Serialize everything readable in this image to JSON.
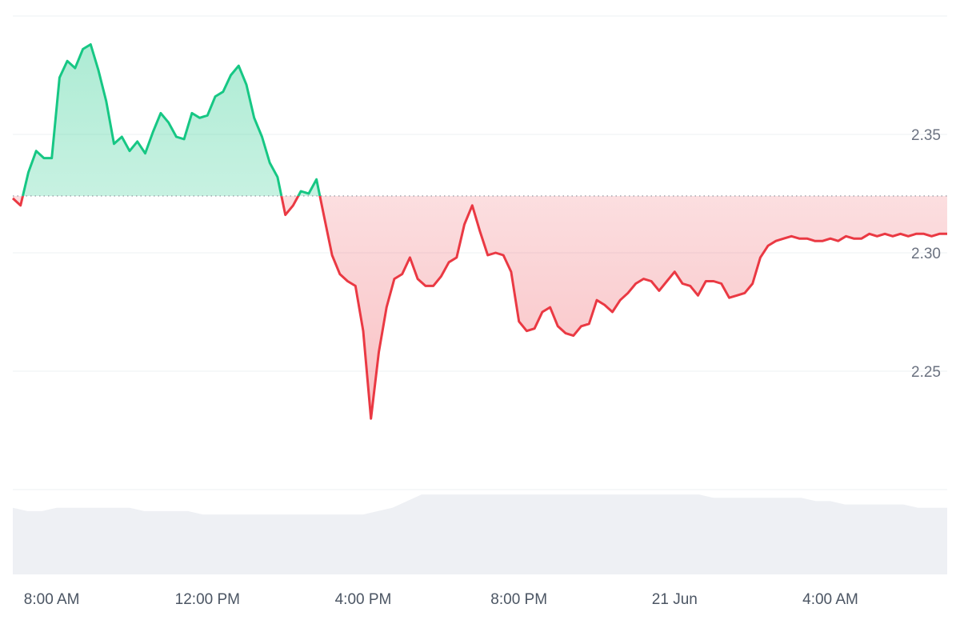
{
  "chart_data": {
    "type": "area",
    "baseline": 2.324,
    "ylim": [
      2.2,
      2.4
    ],
    "y_ticks": [
      "2.35",
      "2.30",
      "2.25"
    ],
    "x_ticks": [
      "8:00 AM",
      "12:00 PM",
      "4:00 PM",
      "8:00 PM",
      "21 Jun",
      "4:00 AM"
    ],
    "x_tick_hours": [
      8,
      12,
      16,
      20,
      24,
      28
    ],
    "x_range_hours": [
      7.0,
      31.0
    ],
    "colors": {
      "up": "#16c784",
      "down": "#ea3943",
      "volume": "#eef0f4",
      "grid": "#eef0f3",
      "baseline": "#8a8f99"
    },
    "series": [
      {
        "x": [
          7.0,
          7.2,
          7.4,
          7.6,
          7.8,
          8.0,
          8.2,
          8.4,
          8.6,
          8.8,
          9.0,
          9.2,
          9.4,
          9.6,
          9.8,
          10.0,
          10.2,
          10.4,
          10.6,
          10.8,
          11.0,
          11.2,
          11.4,
          11.6,
          11.8,
          12.0,
          12.2,
          12.4,
          12.6,
          12.8,
          13.0,
          13.2,
          13.4,
          13.6,
          13.8,
          14.0,
          14.2,
          14.4,
          14.6,
          14.8,
          15.0,
          15.2,
          15.4,
          15.6,
          15.8,
          16.0,
          16.2,
          16.4,
          16.6,
          16.8,
          17.0,
          17.2,
          17.4,
          17.6,
          17.8,
          18.0,
          18.2,
          18.4,
          18.6,
          18.8,
          19.0,
          19.2,
          19.4,
          19.6,
          19.8,
          20.0,
          20.2,
          20.4,
          20.6,
          20.8,
          21.0,
          21.2,
          21.4,
          21.6,
          21.8,
          22.0,
          22.2,
          22.4,
          22.6,
          22.8,
          23.0,
          23.2,
          23.4,
          23.6,
          23.8,
          24.0,
          24.2,
          24.4,
          24.6,
          24.8,
          25.0,
          25.2,
          25.4,
          25.6,
          25.8,
          26.0,
          26.2,
          26.4,
          26.6,
          26.8,
          27.0,
          27.2,
          27.4,
          27.6,
          27.8,
          28.0,
          28.2,
          28.4,
          28.6,
          28.8,
          29.0,
          29.2,
          29.4,
          29.6,
          29.8,
          30.0,
          30.2,
          30.4,
          30.6,
          30.8,
          31.0
        ],
        "values": [
          2.323,
          2.32,
          2.334,
          2.343,
          2.34,
          2.34,
          2.374,
          2.381,
          2.378,
          2.386,
          2.388,
          2.377,
          2.364,
          2.346,
          2.349,
          2.343,
          2.347,
          2.342,
          2.351,
          2.359,
          2.355,
          2.349,
          2.348,
          2.359,
          2.357,
          2.358,
          2.366,
          2.368,
          2.375,
          2.379,
          2.371,
          2.357,
          2.349,
          2.338,
          2.332,
          2.316,
          2.32,
          2.326,
          2.325,
          2.331,
          2.315,
          2.299,
          2.291,
          2.288,
          2.286,
          2.267,
          2.23,
          2.258,
          2.277,
          2.289,
          2.291,
          2.298,
          2.289,
          2.286,
          2.286,
          2.29,
          2.296,
          2.298,
          2.312,
          2.32,
          2.309,
          2.299,
          2.3,
          2.299,
          2.292,
          2.271,
          2.267,
          2.268,
          2.275,
          2.277,
          2.269,
          2.266,
          2.265,
          2.269,
          2.27,
          2.28,
          2.278,
          2.275,
          2.28,
          2.283,
          2.287,
          2.289,
          2.288,
          2.284,
          2.288,
          2.292,
          2.287,
          2.286,
          2.282,
          2.288,
          2.288,
          2.287,
          2.281,
          2.282,
          2.283,
          2.287,
          2.298,
          2.303,
          2.305,
          2.306,
          2.307,
          2.306,
          2.306,
          2.305,
          2.305,
          2.306,
          2.305,
          2.307,
          2.306,
          2.306,
          2.308,
          2.307,
          2.308,
          2.307,
          2.308,
          2.307,
          2.308,
          2.308,
          2.307,
          2.308,
          2.308
        ]
      }
    ],
    "volume": [
      0.2,
      0.19,
      0.19,
      0.2,
      0.2,
      0.2,
      0.2,
      0.2,
      0.2,
      0.19,
      0.19,
      0.19,
      0.19,
      0.18,
      0.18,
      0.18,
      0.18,
      0.18,
      0.18,
      0.18,
      0.18,
      0.18,
      0.18,
      0.18,
      0.18,
      0.19,
      0.2,
      0.22,
      0.24,
      0.24,
      0.24,
      0.24,
      0.24,
      0.24,
      0.24,
      0.24,
      0.24,
      0.24,
      0.24,
      0.24,
      0.24,
      0.24,
      0.24,
      0.24,
      0.24,
      0.24,
      0.24,
      0.24,
      0.23,
      0.23,
      0.23,
      0.23,
      0.23,
      0.23,
      0.23,
      0.22,
      0.22,
      0.21,
      0.21,
      0.21,
      0.21,
      0.21,
      0.2,
      0.2,
      0.2
    ]
  }
}
